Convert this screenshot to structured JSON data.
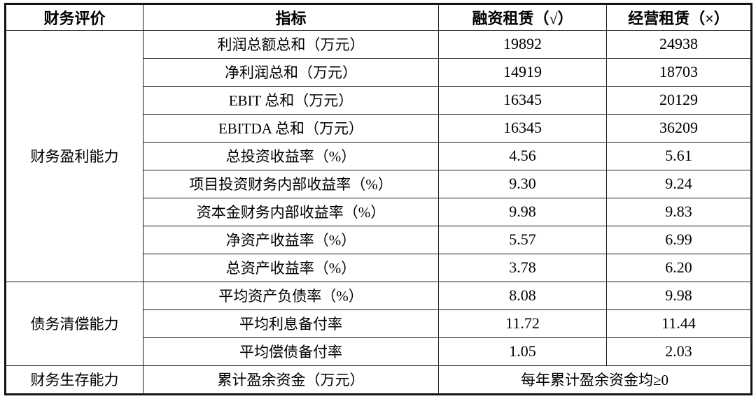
{
  "table": {
    "header": {
      "evaluation": "财务评价",
      "indicator": "指标",
      "finance_lease": "融资租赁（√）",
      "operating_lease": "经营租赁（×）"
    },
    "groups": {
      "profitability": "财务盈利能力",
      "debt_repayment": "债务清偿能力",
      "viability": "财务生存能力"
    },
    "rows": [
      {
        "indicator": "利润总额总和（万元）",
        "finance": "19892",
        "operating": "24938"
      },
      {
        "indicator": "净利润总和（万元）",
        "finance": "14919",
        "operating": "18703"
      },
      {
        "indicator": "EBIT 总和（万元）",
        "finance": "16345",
        "operating": "20129"
      },
      {
        "indicator": "EBITDA 总和（万元）",
        "finance": "16345",
        "operating": "36209"
      },
      {
        "indicator": "总投资收益率（%）",
        "finance": "4.56",
        "operating": "5.61"
      },
      {
        "indicator": "项目投资财务内部收益率（%）",
        "finance": "9.30",
        "operating": "9.24"
      },
      {
        "indicator": "资本金财务内部收益率（%）",
        "finance": "9.98",
        "operating": "9.83"
      },
      {
        "indicator": "净资产收益率（%）",
        "finance": "5.57",
        "operating": "6.99"
      },
      {
        "indicator": "总资产收益率（%）",
        "finance": "3.78",
        "operating": "6.20"
      },
      {
        "indicator": "平均资产负债率（%）",
        "finance": "8.08",
        "operating": "9.98"
      },
      {
        "indicator": "平均利息备付率",
        "finance": "11.72",
        "operating": "11.44"
      },
      {
        "indicator": "平均偿债备付率",
        "finance": "1.05",
        "operating": "2.03"
      },
      {
        "indicator": "累计盈余资金（万元）",
        "merged": "每年累计盈余资金均≥0"
      }
    ]
  },
  "colors": {
    "border": "#1c1c1c",
    "background": "#ffffff",
    "text": "#000000"
  },
  "chart_data": {
    "type": "table",
    "title": "",
    "columns": [
      "财务评价",
      "指标",
      "融资租赁（√）",
      "经营租赁（×）"
    ],
    "rows": [
      [
        "财务盈利能力",
        "利润总额总和（万元）",
        "19892",
        "24938"
      ],
      [
        "财务盈利能力",
        "净利润总和（万元）",
        "14919",
        "18703"
      ],
      [
        "财务盈利能力",
        "EBIT 总和（万元）",
        "16345",
        "20129"
      ],
      [
        "财务盈利能力",
        "EBITDA 总和（万元）",
        "16345",
        "36209"
      ],
      [
        "财务盈利能力",
        "总投资收益率（%）",
        "4.56",
        "5.61"
      ],
      [
        "财务盈利能力",
        "项目投资财务内部收益率（%）",
        "9.30",
        "9.24"
      ],
      [
        "财务盈利能力",
        "资本金财务内部收益率（%）",
        "9.98",
        "9.83"
      ],
      [
        "财务盈利能力",
        "净资产收益率（%）",
        "5.57",
        "6.99"
      ],
      [
        "财务盈利能力",
        "总资产收益率（%）",
        "3.78",
        "6.20"
      ],
      [
        "债务清偿能力",
        "平均资产负债率（%）",
        "8.08",
        "9.98"
      ],
      [
        "债务清偿能力",
        "平均利息备付率",
        "11.72",
        "11.44"
      ],
      [
        "债务清偿能力",
        "平均偿债备付率",
        "1.05",
        "2.03"
      ],
      [
        "财务生存能力",
        "累计盈余资金（万元）",
        "每年累计盈余资金均≥0",
        "每年累计盈余资金均≥0"
      ]
    ]
  }
}
